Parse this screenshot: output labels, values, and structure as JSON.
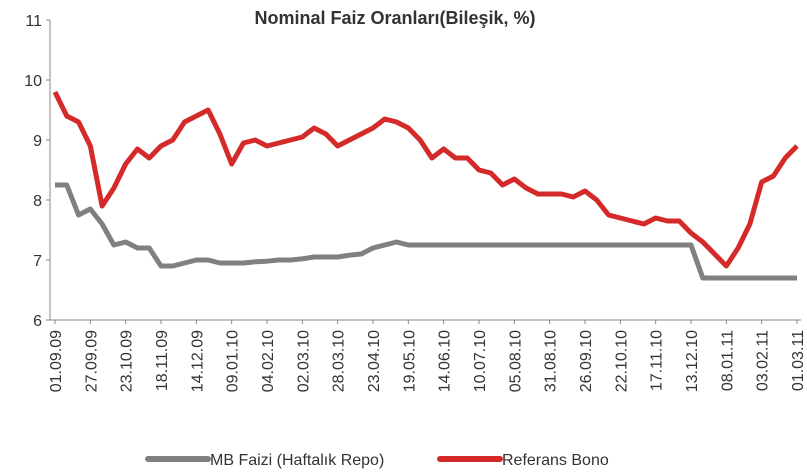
{
  "chart_data": {
    "type": "line",
    "title": "Nominal Faiz Oranları(Bileşik, %)",
    "categories": [
      "01.09.09",
      null,
      null,
      "27.09.09",
      null,
      null,
      "23.10.09",
      null,
      null,
      "18.11.09",
      null,
      null,
      "14.12.09",
      null,
      null,
      "09.01.10",
      null,
      null,
      "04.02.10",
      null,
      null,
      "02.03.10",
      null,
      null,
      "28.03.10",
      null,
      null,
      "23.04.10",
      null,
      null,
      "19.05.10",
      null,
      null,
      "14.06.10",
      null,
      null,
      "10.07.10",
      null,
      null,
      "05.08.10",
      null,
      null,
      "31.08.10",
      null,
      null,
      "26.09.10",
      null,
      null,
      "22.10.10",
      null,
      null,
      "17.11.10",
      null,
      null,
      "13.12.10",
      null,
      null,
      "08.01.11",
      null,
      null,
      "03.02.11",
      null,
      null,
      "01.03.11"
    ],
    "series": [
      {
        "name": "MB Faizi (Haftalık Repo)",
        "color": "#808080",
        "values": [
          8.25,
          8.25,
          7.75,
          7.85,
          7.6,
          7.25,
          7.3,
          7.2,
          7.2,
          6.9,
          6.9,
          6.95,
          7.0,
          7.0,
          6.95,
          6.95,
          6.95,
          6.97,
          6.98,
          7.0,
          7.0,
          7.02,
          7.05,
          7.05,
          7.05,
          7.08,
          7.1,
          7.2,
          7.25,
          7.3,
          7.25,
          7.25,
          7.25,
          7.25,
          7.25,
          7.25,
          7.25,
          7.25,
          7.25,
          7.25,
          7.25,
          7.25,
          7.25,
          7.25,
          7.25,
          7.25,
          7.25,
          7.25,
          7.25,
          7.25,
          7.25,
          7.25,
          7.25,
          7.25,
          7.25,
          6.7,
          6.7,
          6.7,
          6.7,
          6.7,
          6.7,
          6.7,
          6.7,
          6.7
        ]
      },
      {
        "name": "Referans Bono",
        "color": "#d42a2a",
        "values": [
          9.8,
          9.4,
          9.3,
          8.9,
          7.9,
          8.2,
          8.6,
          8.85,
          8.7,
          8.9,
          9.0,
          9.3,
          9.4,
          9.5,
          9.1,
          8.6,
          8.95,
          9.0,
          8.9,
          8.95,
          9.0,
          9.05,
          9.2,
          9.1,
          8.9,
          9.0,
          9.1,
          9.2,
          9.35,
          9.3,
          9.2,
          9.0,
          8.7,
          8.85,
          8.7,
          8.7,
          8.5,
          8.45,
          8.25,
          8.35,
          8.2,
          8.1,
          8.1,
          8.1,
          8.05,
          8.15,
          8.0,
          7.75,
          7.7,
          7.65,
          7.6,
          7.7,
          7.65,
          7.65,
          7.45,
          7.3,
          7.1,
          6.9,
          7.2,
          7.6,
          8.3,
          8.4,
          8.7,
          8.9
        ]
      }
    ],
    "ylim": [
      6,
      11
    ],
    "yticks": [
      6,
      7,
      8,
      9,
      10,
      11
    ],
    "legend": "bottom"
  }
}
